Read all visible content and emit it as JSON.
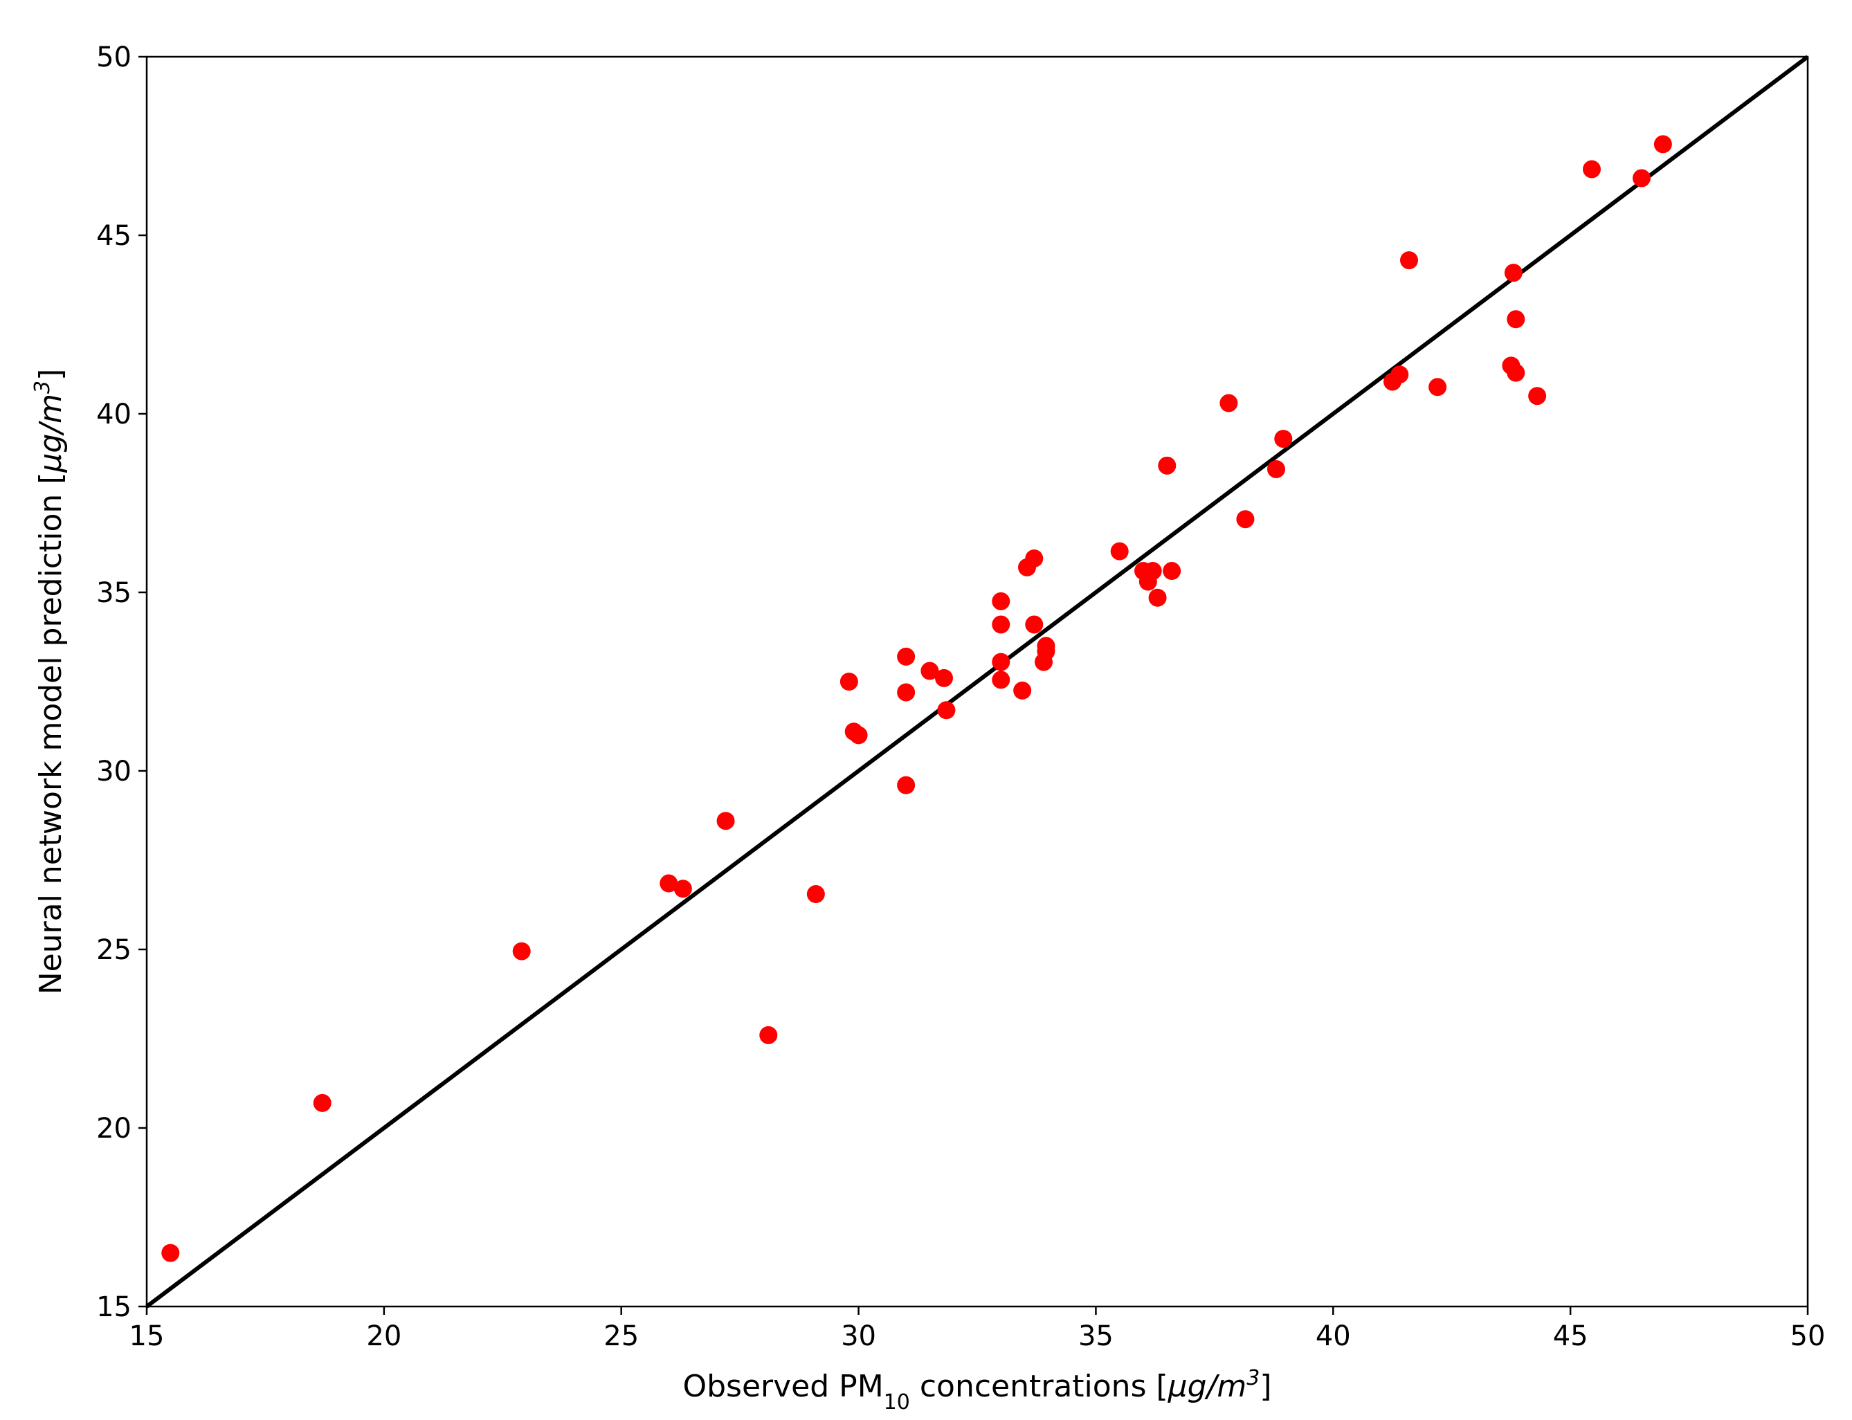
{
  "chart_data": {
    "type": "scatter",
    "title": "",
    "xlabel": {
      "prefix": "Observed PM",
      "subscript": "10",
      "middle": " concentrations [",
      "unit_italic": "μg/m",
      "superscript": "3",
      "suffix": "]"
    },
    "ylabel": {
      "prefix": "Neural network model prediction [",
      "unit_italic": "μg/m",
      "superscript": "3",
      "suffix": "]"
    },
    "xlim": [
      15,
      50
    ],
    "ylim": [
      15,
      50
    ],
    "xticks": [
      "15",
      "20",
      "25",
      "30",
      "35",
      "40",
      "45",
      "50"
    ],
    "yticks": [
      "15",
      "20",
      "25",
      "30",
      "35",
      "40",
      "45",
      "50"
    ],
    "grid": false,
    "legend": "none",
    "colors": {
      "points": "#ff0000",
      "reference_line": "#000000"
    },
    "reference_line": {
      "from": [
        15,
        15
      ],
      "to": [
        50,
        50
      ]
    },
    "points": [
      [
        15.5,
        16.5
      ],
      [
        18.7,
        20.7
      ],
      [
        22.9,
        24.95
      ],
      [
        26.0,
        26.85
      ],
      [
        26.3,
        26.7
      ],
      [
        27.2,
        28.6
      ],
      [
        28.1,
        22.6
      ],
      [
        29.1,
        26.55
      ],
      [
        29.8,
        32.5
      ],
      [
        29.9,
        31.1
      ],
      [
        30.0,
        31.0
      ],
      [
        31.0,
        33.2
      ],
      [
        31.0,
        32.2
      ],
      [
        31.0,
        29.6
      ],
      [
        31.5,
        32.8
      ],
      [
        31.8,
        32.6
      ],
      [
        31.85,
        31.7
      ],
      [
        33.0,
        34.75
      ],
      [
        33.0,
        34.1
      ],
      [
        33.0,
        33.05
      ],
      [
        33.0,
        32.55
      ],
      [
        33.45,
        32.25
      ],
      [
        33.55,
        35.7
      ],
      [
        33.7,
        35.95
      ],
      [
        33.7,
        34.1
      ],
      [
        33.9,
        33.05
      ],
      [
        33.95,
        33.5
      ],
      [
        33.95,
        33.35
      ],
      [
        35.5,
        36.15
      ],
      [
        36.0,
        35.6
      ],
      [
        36.1,
        35.3
      ],
      [
        36.2,
        35.6
      ],
      [
        36.3,
        34.85
      ],
      [
        36.5,
        38.55
      ],
      [
        36.6,
        35.6
      ],
      [
        37.8,
        40.3
      ],
      [
        38.15,
        37.05
      ],
      [
        38.8,
        38.45
      ],
      [
        38.95,
        39.3
      ],
      [
        41.25,
        40.9
      ],
      [
        41.4,
        41.1
      ],
      [
        41.6,
        44.3
      ],
      [
        42.2,
        40.75
      ],
      [
        43.75,
        41.35
      ],
      [
        43.8,
        43.95
      ],
      [
        43.85,
        41.15
      ],
      [
        43.85,
        42.65
      ],
      [
        44.3,
        40.5
      ],
      [
        45.45,
        46.85
      ],
      [
        46.5,
        46.6
      ],
      [
        46.95,
        47.55
      ]
    ]
  }
}
